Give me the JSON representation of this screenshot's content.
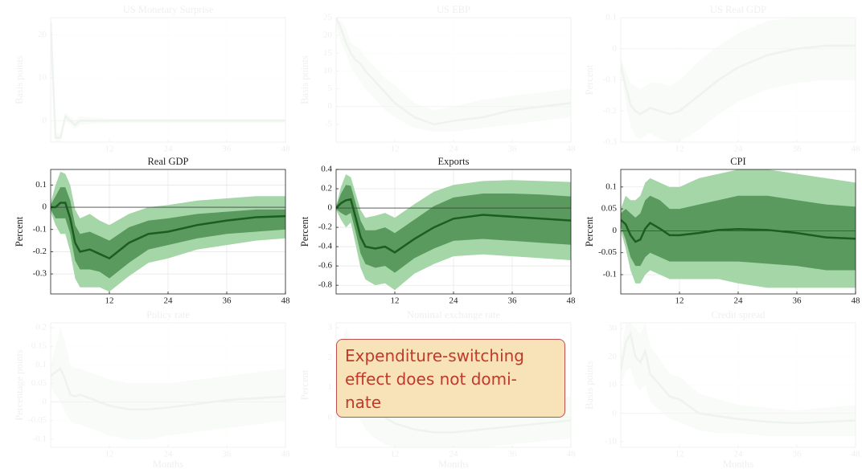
{
  "chart_data": [
    {
      "type": "line",
      "title": "US Monetary Surprise",
      "ylabel": "Basis points",
      "x": [
        0,
        1,
        2,
        3,
        4,
        5,
        6,
        8,
        10,
        12,
        16,
        20,
        24,
        30,
        36,
        42,
        48
      ],
      "xlim": [
        0,
        48
      ],
      "xticks": [
        12,
        24,
        36,
        48
      ],
      "ylim": [
        -5,
        24
      ],
      "yticks": [
        0,
        10,
        20
      ],
      "grid": true,
      "color": "#1b5e20",
      "values": [
        23,
        -4,
        -4,
        1,
        0,
        -1,
        0,
        0,
        0,
        0,
        0,
        0,
        0,
        0,
        0,
        0,
        0
      ],
      "bands": [
        {
          "color": "#a5d6a7",
          "lower": [
            23,
            -5,
            -5,
            0,
            -1,
            -2,
            -1,
            -0.8,
            -0.6,
            -0.5,
            -0.5,
            -0.5,
            -0.5,
            -0.5,
            -0.5,
            -0.5,
            -0.5
          ],
          "upper": [
            23,
            -3,
            -3,
            2,
            1,
            0,
            1,
            0.8,
            0.6,
            0.5,
            0.5,
            0.5,
            0.5,
            0.5,
            0.5,
            0.5,
            0.5
          ]
        }
      ]
    },
    {
      "type": "line",
      "title": "US EBP",
      "ylabel": "Basis points",
      "x": [
        0,
        1,
        2,
        3,
        4,
        5,
        6,
        8,
        10,
        12,
        16,
        20,
        24,
        30,
        36,
        42,
        48
      ],
      "xlim": [
        0,
        48
      ],
      "xticks": [
        12,
        24,
        36,
        48
      ],
      "ylim": [
        -10,
        25
      ],
      "yticks": [
        -5,
        0,
        5,
        10,
        15,
        20,
        25
      ],
      "grid": true,
      "color": "#1b5e20",
      "values": [
        25,
        22,
        18,
        15,
        13,
        12,
        10,
        7,
        4,
        1,
        -3,
        -5,
        -4,
        -3,
        -1,
        0,
        1
      ],
      "bands": [
        {
          "color": "#a5d6a7",
          "lower": [
            23,
            18,
            15,
            11,
            9,
            7,
            5,
            2,
            -1,
            -3,
            -6,
            -7,
            -7,
            -6,
            -5,
            -4,
            -3
          ],
          "upper": [
            25,
            24,
            22,
            18,
            17,
            16,
            14,
            11,
            8,
            6,
            1,
            -1,
            0,
            2,
            3,
            4,
            5
          ]
        }
      ]
    },
    {
      "type": "line",
      "title": "US Real GDP",
      "ylabel": "Percent",
      "x": [
        0,
        1,
        2,
        3,
        4,
        5,
        6,
        8,
        10,
        12,
        16,
        20,
        24,
        30,
        36,
        42,
        48
      ],
      "xlim": [
        0,
        48
      ],
      "xticks": [
        12,
        24,
        36,
        48
      ],
      "ylim": [
        -0.3,
        0.1
      ],
      "yticks": [
        -0.3,
        -0.2,
        -0.1,
        0,
        0.1
      ],
      "grid": true,
      "color": "#1b5e20",
      "values": [
        -0.05,
        -0.12,
        -0.18,
        -0.2,
        -0.21,
        -0.2,
        -0.19,
        -0.2,
        -0.21,
        -0.2,
        -0.15,
        -0.1,
        -0.06,
        -0.02,
        0,
        0.01,
        0.01
      ],
      "bands": [
        {
          "color": "#a5d6a7",
          "lower": [
            -0.07,
            -0.17,
            -0.25,
            -0.28,
            -0.29,
            -0.28,
            -0.27,
            -0.29,
            -0.3,
            -0.3,
            -0.26,
            -0.21,
            -0.17,
            -0.13,
            -0.11,
            -0.1,
            -0.1
          ],
          "upper": [
            -0.03,
            -0.07,
            -0.11,
            -0.12,
            -0.13,
            -0.12,
            -0.11,
            -0.11,
            -0.12,
            -0.1,
            -0.04,
            0.01,
            0.05,
            0.09,
            0.1,
            0.1,
            0.1
          ]
        }
      ]
    },
    {
      "type": "line",
      "title": "Real GDP",
      "ylabel": "Percent",
      "x": [
        0,
        1,
        2,
        3,
        4,
        5,
        6,
        8,
        10,
        12,
        16,
        20,
        24,
        30,
        36,
        42,
        48
      ],
      "xlim": [
        0,
        48
      ],
      "xticks": [
        12,
        24,
        36,
        48
      ],
      "ylim": [
        -0.39,
        0.17
      ],
      "yticks": [
        -0.3,
        -0.2,
        -0.1,
        0,
        0.1
      ],
      "grid": true,
      "color": "#1b5e20",
      "values": [
        0,
        0,
        0.02,
        0.02,
        -0.05,
        -0.16,
        -0.2,
        -0.19,
        -0.21,
        -0.23,
        -0.16,
        -0.12,
        -0.11,
        -0.08,
        -0.06,
        -0.045,
        -0.04
      ],
      "bands": [
        {
          "color": "#a5d6a7",
          "lower": [
            -0.02,
            -0.08,
            -0.12,
            -0.12,
            -0.2,
            -0.32,
            -0.36,
            -0.36,
            -0.36,
            -0.38,
            -0.31,
            -0.25,
            -0.23,
            -0.19,
            -0.17,
            -0.15,
            -0.14
          ],
          "upper": [
            0.02,
            0.1,
            0.16,
            0.15,
            0.1,
            -0.01,
            -0.05,
            -0.03,
            -0.06,
            -0.08,
            -0.03,
            0,
            0.01,
            0.03,
            0.04,
            0.05,
            0.05
          ]
        },
        {
          "color": "#5a9a5e",
          "lower": [
            -0.01,
            -0.05,
            -0.05,
            -0.05,
            -0.12,
            -0.24,
            -0.28,
            -0.28,
            -0.29,
            -0.32,
            -0.25,
            -0.19,
            -0.17,
            -0.14,
            -0.12,
            -0.11,
            -0.1
          ],
          "upper": [
            0.01,
            0.05,
            0.09,
            0.09,
            0.03,
            -0.08,
            -0.12,
            -0.11,
            -0.13,
            -0.15,
            -0.09,
            -0.06,
            -0.05,
            -0.03,
            -0.02,
            -0.01,
            -0.01
          ]
        }
      ]
    },
    {
      "type": "line",
      "title": "Exports",
      "ylabel": "Percent",
      "x": [
        0,
        1,
        2,
        3,
        4,
        5,
        6,
        8,
        10,
        12,
        16,
        20,
        24,
        30,
        36,
        42,
        48
      ],
      "xlim": [
        0,
        48
      ],
      "xticks": [
        12,
        24,
        36,
        48
      ],
      "ylim": [
        -0.89,
        0.4
      ],
      "yticks": [
        -0.8,
        -0.6,
        -0.4,
        -0.2,
        0,
        0.2,
        0.4
      ],
      "grid": true,
      "color": "#1b5e20",
      "values": [
        0,
        0.05,
        0.08,
        0.09,
        -0.1,
        -0.3,
        -0.4,
        -0.42,
        -0.4,
        -0.46,
        -0.32,
        -0.2,
        -0.11,
        -0.07,
        -0.09,
        -0.11,
        -0.13
      ],
      "bands": [
        {
          "color": "#a5d6a7",
          "lower": [
            -0.02,
            -0.12,
            -0.2,
            -0.15,
            -0.38,
            -0.62,
            -0.74,
            -0.8,
            -0.78,
            -0.85,
            -0.68,
            -0.58,
            -0.5,
            -0.48,
            -0.5,
            -0.52,
            -0.54
          ],
          "upper": [
            0.02,
            0.22,
            0.35,
            0.32,
            0.15,
            -0.02,
            -0.1,
            -0.08,
            -0.05,
            -0.1,
            0.04,
            0.17,
            0.24,
            0.28,
            0.29,
            0.28,
            0.27
          ]
        },
        {
          "color": "#5a9a5e",
          "lower": [
            -0.01,
            -0.05,
            -0.08,
            -0.05,
            -0.25,
            -0.47,
            -0.58,
            -0.62,
            -0.6,
            -0.67,
            -0.52,
            -0.42,
            -0.34,
            -0.32,
            -0.34,
            -0.36,
            -0.38
          ],
          "upper": [
            0.01,
            0.15,
            0.24,
            0.23,
            0.05,
            -0.13,
            -0.23,
            -0.23,
            -0.2,
            -0.26,
            -0.12,
            0.02,
            0.11,
            0.15,
            0.15,
            0.14,
            0.12
          ]
        }
      ]
    },
    {
      "type": "line",
      "title": "CPI",
      "ylabel": "Percent",
      "x": [
        0,
        1,
        2,
        3,
        4,
        5,
        6,
        8,
        10,
        12,
        16,
        20,
        24,
        30,
        36,
        42,
        48
      ],
      "xlim": [
        0,
        48
      ],
      "xticks": [
        12,
        24,
        36,
        48
      ],
      "ylim": [
        -0.144,
        0.14
      ],
      "yticks": [
        -0.1,
        -0.05,
        0,
        0.05,
        0.1
      ],
      "grid": true,
      "color": "#1b5e20",
      "values": [
        0.025,
        0.015,
        -0.01,
        -0.025,
        -0.02,
        0.005,
        0.018,
        0.005,
        -0.01,
        -0.01,
        -0.005,
        0.002,
        0.004,
        0.002,
        -0.005,
        -0.015,
        -0.018
      ],
      "bands": [
        {
          "color": "#a5d6a7",
          "lower": [
            0,
            -0.04,
            -0.09,
            -0.12,
            -0.12,
            -0.1,
            -0.09,
            -0.1,
            -0.11,
            -0.11,
            -0.11,
            -0.11,
            -0.12,
            -0.13,
            -0.13,
            -0.13,
            -0.13
          ],
          "upper": [
            0.05,
            0.08,
            0.07,
            0.07,
            0.08,
            0.11,
            0.12,
            0.11,
            0.1,
            0.1,
            0.12,
            0.13,
            0.14,
            0.14,
            0.13,
            0.12,
            0.11
          ]
        },
        {
          "color": "#5a9a5e",
          "lower": [
            0.01,
            -0.02,
            -0.06,
            -0.08,
            -0.08,
            -0.06,
            -0.05,
            -0.06,
            -0.07,
            -0.07,
            -0.07,
            -0.07,
            -0.07,
            -0.075,
            -0.08,
            -0.09,
            -0.09
          ],
          "upper": [
            0.04,
            0.05,
            0.04,
            0.03,
            0.04,
            0.07,
            0.08,
            0.07,
            0.05,
            0.05,
            0.06,
            0.07,
            0.08,
            0.08,
            0.07,
            0.06,
            0.055
          ]
        }
      ]
    },
    {
      "type": "line",
      "title": "Policy rate",
      "ylabel": "Percentage points",
      "xlabel": "Months",
      "x": [
        0,
        1,
        2,
        3,
        4,
        5,
        6,
        8,
        10,
        12,
        16,
        20,
        24,
        30,
        36,
        42,
        48
      ],
      "xlim": [
        0,
        48
      ],
      "xticks": [
        12,
        24,
        36,
        48
      ],
      "ylim": [
        -0.122,
        0.213
      ],
      "yticks": [
        -0.1,
        -0.05,
        0,
        0.05,
        0.1,
        0.15,
        0.2
      ],
      "grid": true,
      "color": "#1b5e20",
      "values": [
        0.07,
        0.08,
        0.09,
        0.06,
        0.02,
        0.015,
        0.02,
        0.01,
        0,
        -0.01,
        -0.02,
        -0.02,
        -0.015,
        -0.005,
        0.005,
        0.01,
        0.015
      ],
      "bands": [
        {
          "color": "#a5d6a7",
          "lower": [
            0.04,
            0.02,
            0,
            -0.03,
            -0.05,
            -0.06,
            -0.06,
            -0.07,
            -0.08,
            -0.09,
            -0.1,
            -0.1,
            -0.09,
            -0.08,
            -0.07,
            -0.06,
            -0.05
          ],
          "upper": [
            0.1,
            0.15,
            0.2,
            0.16,
            0.1,
            0.09,
            0.09,
            0.08,
            0.07,
            0.06,
            0.05,
            0.05,
            0.05,
            0.06,
            0.07,
            0.08,
            0.09
          ]
        }
      ]
    },
    {
      "type": "line",
      "title": "Nominal exchange rate",
      "ylabel": "Percent",
      "xlabel": "Months",
      "x": [
        0,
        1,
        2,
        3,
        4,
        5,
        6,
        8,
        10,
        12,
        16,
        20,
        24,
        30,
        36,
        42,
        48
      ],
      "xlim": [
        0,
        48
      ],
      "xticks": [
        12,
        24,
        36,
        48
      ],
      "ylim": [
        -1,
        3.16
      ],
      "yticks": [
        0,
        1,
        2,
        3
      ],
      "grid": true,
      "color": "#1b5e20",
      "values": [
        1,
        1.5,
        2,
        1.6,
        1.2,
        0.9,
        0.6,
        0.3,
        0,
        -0.2,
        -0.4,
        -0.5,
        -0.5,
        -0.4,
        -0.3,
        -0.2,
        -0.1
      ],
      "bands": [
        {
          "color": "#a5d6a7",
          "lower": [
            0.5,
            0.7,
            1,
            0.6,
            0.2,
            -0.1,
            -0.4,
            -0.7,
            -0.9,
            -1,
            -1,
            -1,
            -1,
            -1,
            -0.9,
            -0.8,
            -0.7
          ],
          "upper": [
            1.5,
            2.3,
            3,
            2.6,
            2.2,
            1.9,
            1.6,
            1.3,
            1,
            0.8,
            0.5,
            0.4,
            0.4,
            0.4,
            0.5,
            0.6,
            0.7
          ]
        }
      ]
    },
    {
      "type": "line",
      "title": "Credit spread",
      "ylabel": "Basis points",
      "xlabel": "Months",
      "x": [
        0,
        1,
        2,
        3,
        4,
        5,
        6,
        8,
        10,
        12,
        16,
        20,
        24,
        30,
        36,
        42,
        48
      ],
      "xlim": [
        0,
        48
      ],
      "xticks": [
        12,
        24,
        36,
        48
      ],
      "ylim": [
        -12,
        32
      ],
      "yticks": [
        -10,
        0,
        10,
        20,
        30
      ],
      "grid": true,
      "color": "#1b5e20",
      "values": [
        15,
        25,
        28,
        20,
        18,
        22,
        14,
        10,
        6,
        5,
        0,
        -1,
        -2,
        -3,
        -3.5,
        -3,
        -2.5
      ],
      "bands": [
        {
          "color": "#a5d6a7",
          "lower": [
            10,
            15,
            16,
            10,
            8,
            10,
            4,
            1,
            -2,
            -3,
            -6,
            -7,
            -7,
            -8,
            -8,
            -8,
            -8
          ],
          "upper": [
            20,
            32,
            32,
            30,
            28,
            32,
            24,
            19,
            14,
            13,
            7,
            5,
            3,
            2,
            1,
            2,
            3
          ]
        }
      ]
    }
  ],
  "annotation": {
    "lines": [
      "Expenditure-switching",
      "effect does not domi-",
      "nate"
    ]
  }
}
